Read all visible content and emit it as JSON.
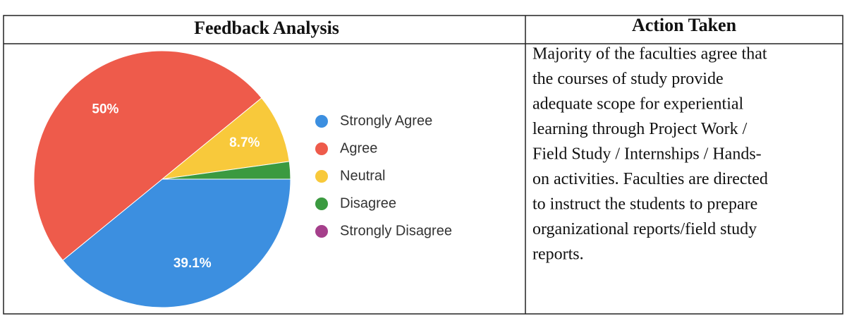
{
  "table": {
    "headers": [
      "Feedback Analysis",
      "Action Taken"
    ],
    "action_lines": [
      "Majority of the faculties agree that",
      "the courses of study provide",
      "adequate scope for experiential",
      "learning through Project Work /",
      "Field Study / Internships / Hands-",
      "on activities. Faculties are directed",
      "to instruct the students to prepare",
      "organizational reports/field study",
      "reports."
    ]
  },
  "chart_data": {
    "type": "pie",
    "categories": [
      "Strongly Agree",
      "Agree",
      "Neutral",
      "Disagree",
      "Strongly Disagree"
    ],
    "values": [
      39.1,
      50,
      8.7,
      2.2,
      0
    ],
    "value_labels": [
      "39.1%",
      "50%",
      "8.7%",
      null,
      null
    ],
    "colors": [
      "#3c8fe0",
      "#ee5b4b",
      "#f8c93b",
      "#3b9a40",
      "#a53f8b"
    ],
    "legend": "right"
  }
}
